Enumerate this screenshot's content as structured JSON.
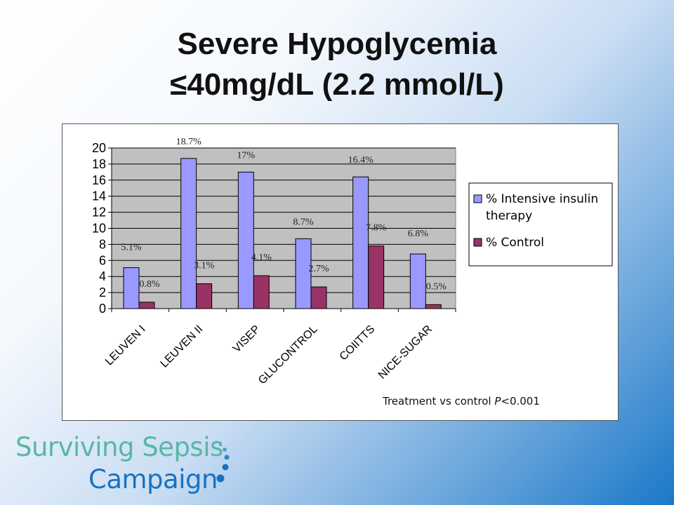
{
  "slide": {
    "title_line1": "Severe Hypoglycemia",
    "title_line2": "≤40mg/dL (2.2 mmol/L)",
    "footnote_prefix": "Treatment vs control ",
    "footnote_p": "P",
    "footnote_suffix": "<0.001"
  },
  "logo": {
    "line1": "Surviving Sepsis",
    "line2": "Campaign"
  },
  "colors": {
    "intensive": "#9999ff",
    "control": "#993366",
    "plot_bg": "#c0c0c0",
    "logo_teal": "#58b7a4",
    "logo_blue": "#1a72c2"
  },
  "chart_data": {
    "type": "bar",
    "categories": [
      "LEUVEN I",
      "LEUVEN II",
      "VISEP",
      "GLUCONTROL",
      "COIITTS",
      "NICE-SUGAR"
    ],
    "series": [
      {
        "name": "% Intensive insulin therapy",
        "values": [
          5.1,
          18.7,
          17,
          8.7,
          16.4,
          6.8
        ],
        "labels": [
          "5.1%",
          "18.7%",
          "17%",
          "8.7%",
          "16.4%",
          "6.8%"
        ]
      },
      {
        "name": "% Control",
        "values": [
          0.8,
          3.1,
          4.1,
          2.7,
          7.8,
          0.5
        ],
        "labels": [
          "0.8%",
          "3.1%",
          "4.1%",
          "2.7%",
          "7.8%",
          "0.5%"
        ]
      }
    ],
    "ylim": [
      0,
      20
    ],
    "yticks": [
      0,
      2,
      4,
      6,
      8,
      10,
      12,
      14,
      16,
      18,
      20
    ],
    "grid": true,
    "legend_position": "right"
  }
}
